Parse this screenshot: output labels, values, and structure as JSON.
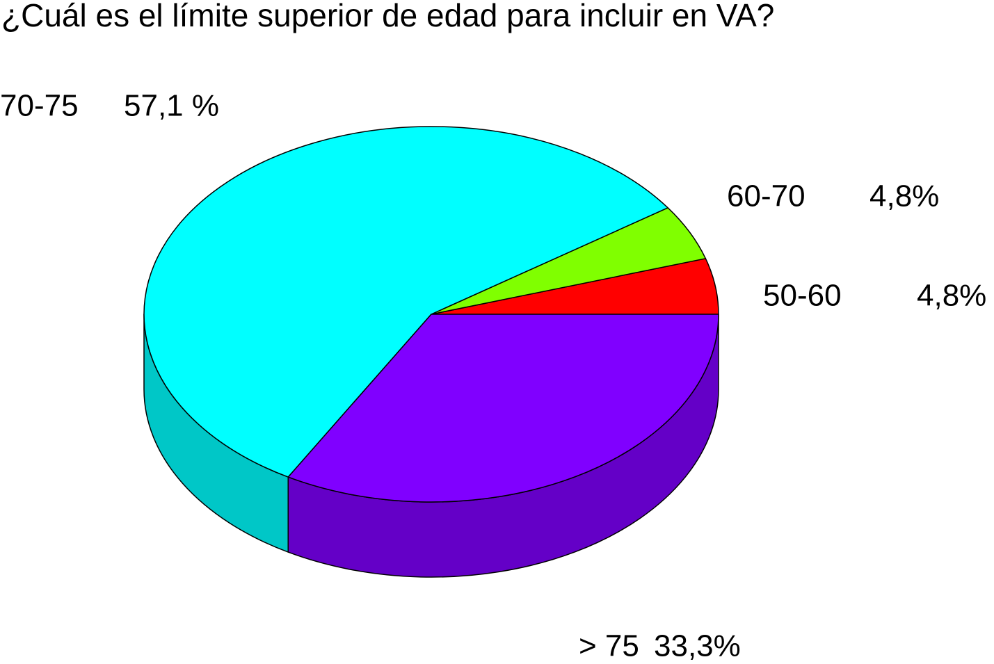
{
  "chart_data": {
    "type": "pie",
    "title": "¿Cuál es el límite superior de edad para incluir en VA?",
    "categories": [
      "50-60",
      "60-70",
      "70-75",
      "> 75"
    ],
    "values": [
      4.8,
      4.8,
      57.1,
      33.3
    ],
    "value_labels": [
      "4,8%",
      "4,8%",
      "57,1 %",
      "33,3%"
    ],
    "colors": [
      "#ff0000",
      "#80ff00",
      "#00ffff",
      "#8000ff"
    ]
  }
}
